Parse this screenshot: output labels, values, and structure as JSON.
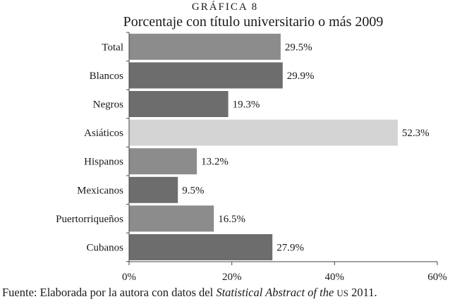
{
  "chart_data": {
    "type": "bar",
    "orientation": "horizontal",
    "kicker": "GRÁFICA 8",
    "title": "Porcentaje con título universitario o más 2009",
    "categories": [
      "Total",
      "Blancos",
      "Negros",
      "Asiáticos",
      "Hispanos",
      "Mexicanos",
      "Puertorriqueños",
      "Cubanos"
    ],
    "values": [
      29.5,
      29.9,
      19.3,
      52.3,
      13.2,
      9.5,
      16.5,
      27.9
    ],
    "value_labels": [
      "29.5%",
      "29.9%",
      "19.3%",
      "52.3%",
      "13.2%",
      "9.5%",
      "16.5%",
      "27.9%"
    ],
    "bar_colors": [
      "#8c8c8c",
      "#6d6d6d",
      "#6d6d6d",
      "#d4d4d4",
      "#8c8c8c",
      "#6d6d6d",
      "#8c8c8c",
      "#6d6d6d"
    ],
    "xlim": [
      0,
      60
    ],
    "xticks": [
      0,
      20,
      40,
      60
    ],
    "xtick_labels": [
      "0%",
      "20%",
      "40%",
      "60%"
    ],
    "grid": false,
    "legend": "none"
  },
  "source": {
    "prefix": "Fuente: Elaborada por la autora con datos del ",
    "italic": "Statistical Abstract of the ",
    "smallcaps": "US",
    "suffix": " 2011."
  }
}
